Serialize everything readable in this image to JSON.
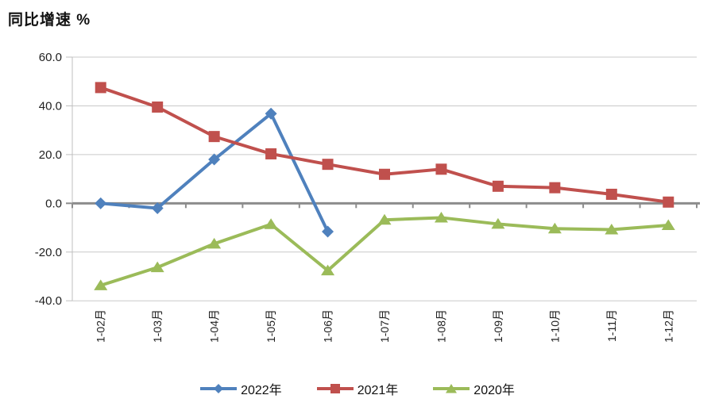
{
  "page_title": "同比增速 %",
  "chart_data": {
    "type": "line",
    "title": "同比增速 %",
    "categories": [
      "1-02月",
      "1-03月",
      "1-04月",
      "1-05月",
      "1-06月",
      "1-07月",
      "1-08月",
      "1-09月",
      "1-10月",
      "1-11月",
      "1-12月"
    ],
    "series": [
      {
        "name": "2022年",
        "color": "#4F81BD",
        "marker": "diamond",
        "values": [
          0.0,
          -2.0,
          18.0,
          36.8,
          -11.6,
          null,
          null,
          null,
          null,
          null,
          null
        ]
      },
      {
        "name": "2021年",
        "color": "#C0504D",
        "marker": "square",
        "values": [
          47.5,
          39.5,
          27.4,
          20.3,
          16.0,
          11.9,
          14.0,
          7.0,
          6.4,
          3.7,
          0.5
        ]
      },
      {
        "name": "2020年",
        "color": "#9BBB59",
        "marker": "triangle",
        "values": [
          -33.7,
          -26.3,
          -16.6,
          -8.6,
          -27.6,
          -6.8,
          -5.9,
          -8.5,
          -10.4,
          -10.8,
          -9.0
        ]
      }
    ],
    "yticks": [
      "60.0",
      "40.0",
      "20.0",
      "0.0",
      "-20.0",
      "-40.0"
    ],
    "ylim": [
      -40,
      60
    ],
    "grid": true,
    "legend_position": "bottom",
    "colors": {
      "gridline": "#C9C9C9",
      "axis_line": "#BFBFBF",
      "zero_line": "#8C8C8C",
      "text": "#1F1F1F"
    }
  }
}
